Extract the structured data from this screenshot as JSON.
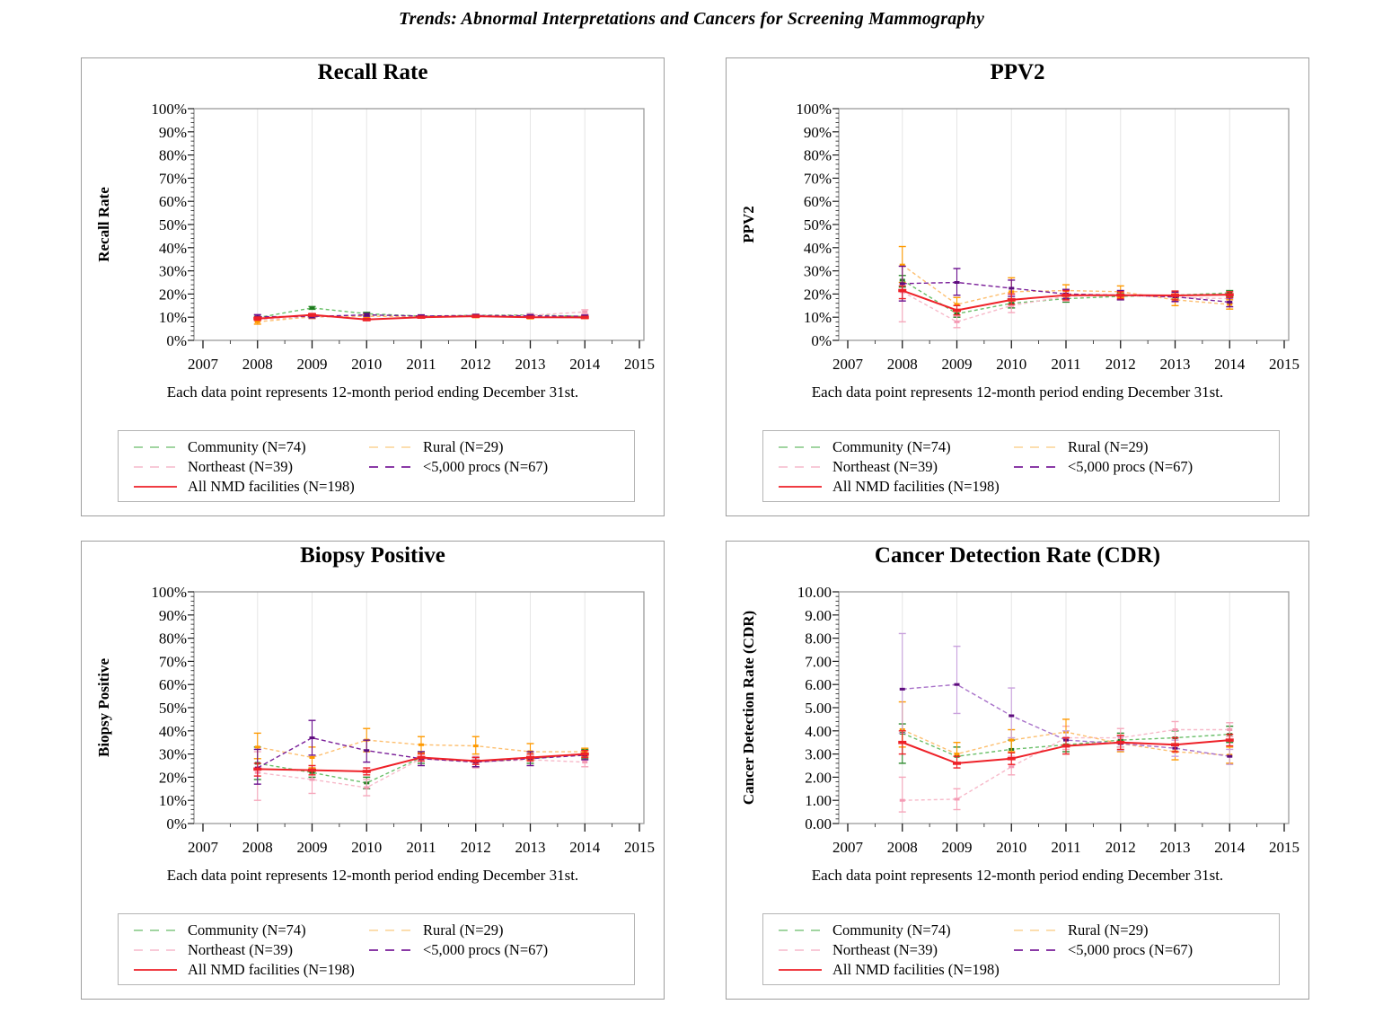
{
  "page_title": "Trends: Abnormal Interpretations and Cancers for Screening Mammography",
  "footnote": "Each data point represents 12-month period ending December 31st.",
  "legend": {
    "items": [
      {
        "key": "community",
        "label": "Community (N=74)",
        "column": 0
      },
      {
        "key": "northeast",
        "label": "Northeast (N=39)",
        "column": 0
      },
      {
        "key": "all_nmd",
        "label": "All NMD facilities (N=198)",
        "column": 0
      },
      {
        "key": "rural",
        "label": "Rural (N=29)",
        "column": 1
      },
      {
        "key": "procs_lt5000",
        "label": "<5,000 procs (N=67)",
        "column": 1
      }
    ]
  },
  "series_styles": {
    "community": {
      "color": "#6abf69",
      "marker_color": "#1e7b1e",
      "error_color": "#2e8b2e",
      "dash": "4 3",
      "legend_color": "#94cf94"
    },
    "northeast": {
      "color": "#f7b9c9",
      "marker_color": "#f49ab4",
      "error_color": "#f6a8bc",
      "dash": "4 3",
      "legend_color": "#f8c3d2"
    },
    "all_nmd": {
      "color": "#ee2128",
      "marker_color": "#ee2128",
      "error_color": "#ee2128",
      "dash": "",
      "legend_color": "#ee2128"
    },
    "rural": {
      "color": "#fdbf6f",
      "marker_color": "#ff9a00",
      "error_color": "#ff9a00",
      "dash": "4 3",
      "legend_color": "#fcd9a4"
    },
    "procs_lt5000": {
      "color": "#7a1f99",
      "marker_color": "#5e0d7e",
      "error_color": "#6a0f8e",
      "dash": "5 3",
      "legend_color": "#7a1f99"
    }
  },
  "chart_data": [
    {
      "type": "line",
      "title": "Recall Rate",
      "ylabel": "Recall Rate",
      "xticks": [
        2007,
        2008,
        2009,
        2010,
        2011,
        2012,
        2013,
        2014,
        2015
      ],
      "x": [
        2008,
        2009,
        2010,
        2011,
        2012,
        2013,
        2014
      ],
      "ylim": [
        0,
        100
      ],
      "ytick_labels": [
        "0%",
        "10%",
        "20%",
        "30%",
        "40%",
        "50%",
        "60%",
        "70%",
        "80%",
        "90%",
        "100%"
      ],
      "series": [
        {
          "key": "community",
          "name": "Community (N=74)",
          "values": [
            9.8,
            14.0,
            11.5,
            10.5,
            10.8,
            11.0,
            10.3
          ],
          "err_low": [
            9.2,
            13.4,
            10.9,
            10.1,
            10.4,
            10.5,
            9.9
          ],
          "err_high": [
            10.4,
            14.6,
            12.1,
            10.9,
            11.2,
            11.5,
            10.7
          ]
        },
        {
          "key": "northeast",
          "name": "Northeast (N=39)",
          "values": [
            9.0,
            10.0,
            10.4,
            10.3,
            10.6,
            10.8,
            12.3
          ],
          "err_low": [
            8.3,
            9.3,
            9.7,
            9.6,
            9.9,
            10.1,
            11.4
          ],
          "err_high": [
            9.7,
            10.7,
            11.1,
            11.0,
            11.3,
            11.5,
            13.2
          ]
        },
        {
          "key": "rural",
          "name": "Rural (N=29)",
          "values": [
            8.0,
            10.2,
            10.4,
            10.3,
            10.5,
            10.0,
            10.0
          ],
          "err_low": [
            7.0,
            9.5,
            9.7,
            9.6,
            9.8,
            9.3,
            9.4
          ],
          "err_high": [
            9.0,
            10.9,
            11.1,
            11.0,
            11.2,
            10.7,
            10.6
          ]
        },
        {
          "key": "procs_lt5000",
          "name": "<5,000 procs (N=67)",
          "values": [
            10.2,
            10.3,
            11.0,
            10.5,
            10.7,
            10.6,
            10.4
          ],
          "err_low": [
            9.3,
            9.7,
            10.4,
            10.0,
            10.2,
            10.1,
            9.9
          ],
          "err_high": [
            11.1,
            10.9,
            11.6,
            11.0,
            11.2,
            11.1,
            10.9
          ]
        },
        {
          "key": "all_nmd",
          "name": "All NMD facilities (N=198)",
          "values": [
            9.4,
            11.0,
            9.0,
            10.0,
            10.4,
            10.0,
            9.9
          ],
          "err_low": [
            8.7,
            10.4,
            8.5,
            9.6,
            10.0,
            9.6,
            9.5
          ],
          "err_high": [
            10.1,
            11.6,
            9.5,
            10.4,
            10.8,
            10.4,
            10.3
          ]
        }
      ]
    },
    {
      "type": "line",
      "title": "PPV2",
      "ylabel": "PPV2",
      "xticks": [
        2007,
        2008,
        2009,
        2010,
        2011,
        2012,
        2013,
        2014,
        2015
      ],
      "x": [
        2008,
        2009,
        2010,
        2011,
        2012,
        2013,
        2014
      ],
      "ylim": [
        0,
        100
      ],
      "ytick_labels": [
        "0%",
        "10%",
        "20%",
        "30%",
        "40%",
        "50%",
        "60%",
        "70%",
        "80%",
        "90%",
        "100%"
      ],
      "series": [
        {
          "key": "community",
          "name": "Community (N=74)",
          "values": [
            26,
            11.5,
            16,
            18,
            19,
            19.5,
            20.5
          ],
          "err_low": [
            23,
            10,
            14,
            16.5,
            17.5,
            18,
            19
          ],
          "err_high": [
            28,
            13,
            18,
            19.5,
            20.5,
            21,
            21.5
          ]
        },
        {
          "key": "northeast",
          "name": "Northeast (N=39)",
          "values": [
            21,
            8,
            15,
            19,
            19.5,
            18.5,
            18
          ],
          "err_low": [
            8,
            5.5,
            12,
            17,
            17.5,
            16.5,
            16
          ],
          "err_high": [
            32,
            10.5,
            18,
            21,
            21.5,
            20.5,
            20
          ]
        },
        {
          "key": "rural",
          "name": "Rural (N=29)",
          "values": [
            32.5,
            15.5,
            21,
            21.5,
            21,
            17.5,
            15.5
          ],
          "err_low": [
            25,
            12.5,
            17,
            19,
            18.5,
            15,
            13.5
          ],
          "err_high": [
            40.5,
            18.5,
            27,
            24,
            23.5,
            20,
            17.5
          ]
        },
        {
          "key": "procs_lt5000",
          "name": "<5,000 procs (N=67)",
          "values": [
            24.5,
            25,
            22.5,
            20,
            19.5,
            18.8,
            16.5
          ],
          "err_low": [
            17,
            19.5,
            19,
            18,
            17.5,
            16.8,
            14.5
          ],
          "err_high": [
            32,
            31,
            26,
            22,
            21.5,
            20.8,
            18.3
          ]
        },
        {
          "key": "all_nmd",
          "name": "All NMD facilities (N=198)",
          "values": [
            21.5,
            13,
            17.5,
            19.5,
            19.5,
            19.4,
            19.7
          ],
          "err_low": [
            18,
            11,
            15.5,
            17.5,
            18,
            17.5,
            18.5
          ],
          "err_high": [
            23.5,
            15,
            20,
            21.5,
            21,
            21.3,
            21
          ]
        }
      ]
    },
    {
      "type": "line",
      "title": "Biopsy Positive",
      "ylabel": "Biopsy Positive",
      "xticks": [
        2007,
        2008,
        2009,
        2010,
        2011,
        2012,
        2013,
        2014,
        2015
      ],
      "x": [
        2008,
        2009,
        2010,
        2011,
        2012,
        2013,
        2014
      ],
      "ylim": [
        0,
        100
      ],
      "ytick_labels": [
        "0%",
        "10%",
        "20%",
        "30%",
        "40%",
        "50%",
        "60%",
        "70%",
        "80%",
        "90%",
        "100%"
      ],
      "series": [
        {
          "key": "community",
          "name": "Community (N=74)",
          "values": [
            26,
            22,
            17.5,
            28.5,
            26.5,
            28,
            30
          ],
          "err_low": [
            19,
            20,
            15,
            26,
            24.5,
            26,
            28
          ],
          "err_high": [
            33,
            24,
            20,
            31,
            28.5,
            30,
            32
          ]
        },
        {
          "key": "northeast",
          "name": "Northeast (N=39)",
          "values": [
            22,
            19,
            15.5,
            28,
            26.5,
            27.5,
            26.5
          ],
          "err_low": [
            10,
            13,
            12,
            25,
            24,
            25,
            24.5
          ],
          "err_high": [
            31,
            25,
            19,
            31,
            29,
            30,
            28.5
          ]
        },
        {
          "key": "rural",
          "name": "Rural (N=29)",
          "values": [
            33,
            28.5,
            36,
            34,
            33.5,
            31,
            31
          ],
          "err_low": [
            28,
            24,
            31,
            30.5,
            30,
            27.5,
            29
          ],
          "err_high": [
            39,
            33,
            41,
            37.5,
            37.5,
            34.5,
            32.5
          ]
        },
        {
          "key": "procs_lt5000",
          "name": "<5,000 procs (N=67)",
          "values": [
            24,
            37,
            31.5,
            28,
            26.5,
            28,
            29.5
          ],
          "err_low": [
            17,
            29.5,
            26.5,
            25,
            24.5,
            25,
            27.5
          ],
          "err_high": [
            32,
            44.5,
            36,
            31,
            28.5,
            31,
            31.5
          ]
        },
        {
          "key": "all_nmd",
          "name": "All NMD facilities (N=198)",
          "values": [
            23.5,
            23,
            22.5,
            28.5,
            27,
            28.5,
            30
          ],
          "err_low": [
            20.5,
            21,
            21,
            27,
            25.5,
            27,
            28.5
          ],
          "err_high": [
            26,
            25,
            24,
            30,
            28.5,
            30,
            31.5
          ]
        }
      ]
    },
    {
      "type": "line",
      "title": "Cancer Detection Rate (CDR)",
      "ylabel": "Cancer Detection Rate (CDR)",
      "xticks": [
        2007,
        2008,
        2009,
        2010,
        2011,
        2012,
        2013,
        2014,
        2015
      ],
      "x": [
        2008,
        2009,
        2010,
        2011,
        2012,
        2013,
        2014
      ],
      "ylim": [
        0,
        10
      ],
      "ytick_labels": [
        "0.00",
        "1.00",
        "2.00",
        "3.00",
        "4.00",
        "5.00",
        "6.00",
        "7.00",
        "8.00",
        "9.00",
        "10.00"
      ],
      "series": [
        {
          "key": "community",
          "name": "Community (N=74)",
          "values": [
            3.9,
            2.9,
            3.2,
            3.4,
            3.6,
            3.7,
            3.85
          ],
          "err_low": [
            2.6,
            2.6,
            2.8,
            3.1,
            3.3,
            3.4,
            3.5
          ],
          "err_high": [
            4.3,
            3.3,
            3.6,
            3.7,
            3.9,
            4.0,
            4.2
          ]
        },
        {
          "key": "northeast",
          "name": "Northeast (N=39)",
          "values": [
            1.0,
            1.05,
            2.45,
            3.7,
            3.7,
            4.05,
            4.05
          ],
          "err_low": [
            0.5,
            0.6,
            2.1,
            3.2,
            3.3,
            3.7,
            3.75
          ],
          "err_high": [
            2.0,
            1.5,
            2.9,
            4.2,
            4.1,
            4.4,
            4.35
          ]
        },
        {
          "key": "rural",
          "name": "Rural (N=29)",
          "values": [
            4.05,
            3.0,
            3.6,
            3.95,
            3.45,
            3.1,
            2.95
          ],
          "err_low": [
            3.3,
            2.6,
            3.1,
            3.4,
            3.1,
            2.75,
            2.6
          ],
          "err_high": [
            5.25,
            3.5,
            4.05,
            4.5,
            3.8,
            3.45,
            3.3
          ]
        },
        {
          "key": "procs_lt5000",
          "name": "<5,000 procs (N=67)",
          "style": {
            "color": "#a871c9",
            "error_color": "#c9a2dd"
          },
          "values": [
            5.8,
            6.0,
            4.65,
            3.6,
            3.45,
            3.25,
            2.9
          ],
          "err_low": [
            3.9,
            4.75,
            3.7,
            3.3,
            3.15,
            2.9,
            2.55
          ],
          "err_high": [
            8.2,
            7.65,
            5.85,
            4.0,
            3.75,
            3.6,
            3.2
          ]
        },
        {
          "key": "all_nmd",
          "name": "All NMD facilities (N=198)",
          "values": [
            3.5,
            2.6,
            2.8,
            3.35,
            3.5,
            3.4,
            3.6
          ],
          "err_low": [
            3.0,
            2.4,
            2.55,
            3.0,
            3.2,
            3.1,
            3.35
          ],
          "err_high": [
            4.0,
            2.9,
            3.05,
            3.7,
            3.8,
            3.7,
            3.85
          ]
        }
      ]
    }
  ]
}
